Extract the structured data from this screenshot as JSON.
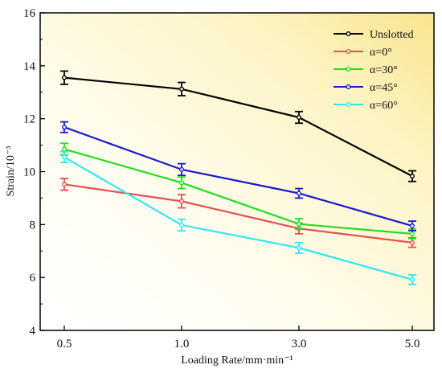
{
  "chart_data": {
    "type": "line",
    "categories": [
      "0.5",
      "1.0",
      "3.0",
      "5.0"
    ],
    "xlabel": "Loading Rate/mm·min⁻¹",
    "ylabel": "Strain/10⁻³",
    "ylim": [
      4,
      16
    ],
    "yticks": [
      4,
      6,
      8,
      10,
      12,
      14,
      16
    ],
    "legend_position": "top-right",
    "grid": false,
    "background": "yellow gradient",
    "series": [
      {
        "name": "Unslotted",
        "color": "#000000",
        "values": [
          13.55,
          13.12,
          12.05,
          9.83
        ],
        "errors": [
          0.25,
          0.25,
          0.22,
          0.2
        ]
      },
      {
        "name": "α=0°",
        "color": "#e8504f",
        "values": [
          9.52,
          8.88,
          7.85,
          7.32
        ],
        "errors": [
          0.22,
          0.25,
          0.2,
          0.18
        ]
      },
      {
        "name": "α=30°",
        "color": "#22dd22",
        "values": [
          10.85,
          9.58,
          8.02,
          7.65
        ],
        "errors": [
          0.22,
          0.22,
          0.2,
          0.18
        ]
      },
      {
        "name": "α=45°",
        "color": "#1a1acc",
        "values": [
          11.68,
          10.08,
          9.18,
          7.95
        ],
        "errors": [
          0.2,
          0.22,
          0.18,
          0.18
        ]
      },
      {
        "name": "α=60°",
        "color": "#33e6f0",
        "values": [
          10.55,
          7.98,
          7.12,
          5.92
        ],
        "errors": [
          0.2,
          0.22,
          0.2,
          0.18
        ]
      }
    ]
  }
}
